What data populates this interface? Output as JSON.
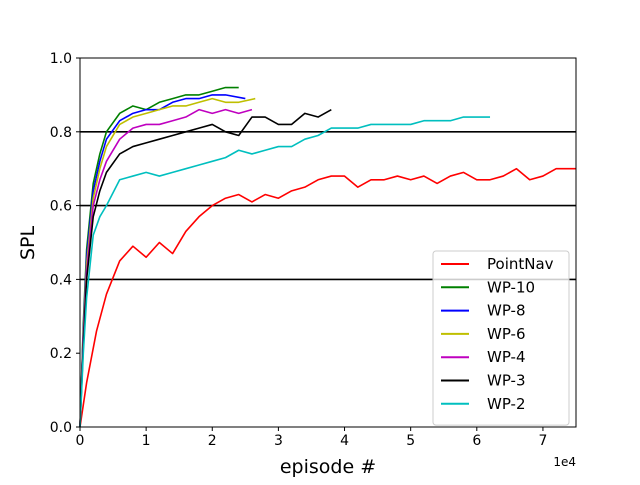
{
  "chart_data": {
    "type": "line",
    "title": "",
    "xlabel": "episode #",
    "ylabel": "SPL",
    "x_offset_label": "1e4",
    "xlim": [
      0,
      7.5
    ],
    "ylim": [
      0.0,
      1.0
    ],
    "x_tick_labels": [
      "0",
      "1",
      "2",
      "3",
      "4",
      "5",
      "6",
      "7"
    ],
    "x_ticks": [
      0,
      1,
      2,
      3,
      4,
      5,
      6,
      7
    ],
    "y_tick_labels": [
      "0.0",
      "0.2",
      "0.4",
      "0.6",
      "0.8",
      "1.0"
    ],
    "y_ticks": [
      0.0,
      0.2,
      0.4,
      0.6,
      0.8,
      1.0
    ],
    "reference_lines": [
      0.4,
      0.6,
      0.8
    ],
    "grid": false,
    "legend_position": "lower-right",
    "series": [
      {
        "name": "PointNav",
        "color": "#ff0000",
        "x": [
          0,
          0.1,
          0.25,
          0.4,
          0.6,
          0.8,
          1.0,
          1.2,
          1.4,
          1.6,
          1.8,
          2.0,
          2.2,
          2.4,
          2.6,
          2.8,
          3.0,
          3.2,
          3.4,
          3.6,
          3.8,
          4.0,
          4.2,
          4.4,
          4.6,
          4.8,
          5.0,
          5.2,
          5.4,
          5.6,
          5.8,
          6.0,
          6.2,
          6.4,
          6.6,
          6.8,
          7.0,
          7.2,
          7.5
        ],
        "y": [
          0.0,
          0.12,
          0.26,
          0.36,
          0.45,
          0.49,
          0.46,
          0.5,
          0.47,
          0.53,
          0.57,
          0.6,
          0.62,
          0.63,
          0.61,
          0.63,
          0.62,
          0.64,
          0.65,
          0.67,
          0.68,
          0.68,
          0.65,
          0.67,
          0.67,
          0.68,
          0.67,
          0.68,
          0.66,
          0.68,
          0.69,
          0.67,
          0.67,
          0.68,
          0.7,
          0.67,
          0.68,
          0.7,
          0.7
        ]
      },
      {
        "name": "WP-10",
        "color": "#008000",
        "x": [
          0,
          0.05,
          0.1,
          0.2,
          0.3,
          0.4,
          0.6,
          0.8,
          1.0,
          1.2,
          1.4,
          1.6,
          1.8,
          2.0,
          2.2,
          2.4
        ],
        "y": [
          0.0,
          0.28,
          0.48,
          0.66,
          0.74,
          0.8,
          0.85,
          0.87,
          0.86,
          0.88,
          0.89,
          0.9,
          0.9,
          0.91,
          0.92,
          0.92
        ]
      },
      {
        "name": "WP-8",
        "color": "#0000ff",
        "x": [
          0,
          0.05,
          0.1,
          0.2,
          0.3,
          0.4,
          0.6,
          0.8,
          1.0,
          1.2,
          1.4,
          1.6,
          1.8,
          2.0,
          2.2,
          2.5
        ],
        "y": [
          0.0,
          0.26,
          0.46,
          0.64,
          0.72,
          0.78,
          0.83,
          0.85,
          0.86,
          0.86,
          0.88,
          0.89,
          0.89,
          0.9,
          0.9,
          0.89
        ]
      },
      {
        "name": "WP-6",
        "color": "#bfbf00",
        "x": [
          0,
          0.05,
          0.1,
          0.2,
          0.3,
          0.4,
          0.6,
          0.8,
          1.0,
          1.2,
          1.4,
          1.6,
          1.8,
          2.0,
          2.2,
          2.4,
          2.65
        ],
        "y": [
          0.0,
          0.25,
          0.44,
          0.62,
          0.7,
          0.76,
          0.82,
          0.84,
          0.85,
          0.86,
          0.87,
          0.87,
          0.88,
          0.89,
          0.88,
          0.88,
          0.89
        ]
      },
      {
        "name": "WP-4",
        "color": "#bf00bf",
        "x": [
          0,
          0.05,
          0.1,
          0.2,
          0.3,
          0.4,
          0.6,
          0.8,
          1.0,
          1.2,
          1.4,
          1.6,
          1.8,
          2.0,
          2.2,
          2.4,
          2.6
        ],
        "y": [
          0.0,
          0.24,
          0.42,
          0.6,
          0.67,
          0.72,
          0.78,
          0.81,
          0.82,
          0.82,
          0.83,
          0.84,
          0.86,
          0.85,
          0.86,
          0.85,
          0.86
        ]
      },
      {
        "name": "WP-3",
        "color": "#000000",
        "x": [
          0,
          0.05,
          0.1,
          0.2,
          0.3,
          0.4,
          0.6,
          0.8,
          1.0,
          1.2,
          1.4,
          1.6,
          1.8,
          2.0,
          2.2,
          2.4,
          2.6,
          2.8,
          3.0,
          3.2,
          3.4,
          3.6,
          3.8
        ],
        "y": [
          0.0,
          0.22,
          0.4,
          0.57,
          0.64,
          0.69,
          0.74,
          0.76,
          0.77,
          0.78,
          0.79,
          0.8,
          0.81,
          0.82,
          0.8,
          0.79,
          0.84,
          0.84,
          0.82,
          0.82,
          0.85,
          0.84,
          0.86
        ]
      },
      {
        "name": "WP-2",
        "color": "#00bfbf",
        "x": [
          0,
          0.05,
          0.1,
          0.2,
          0.3,
          0.4,
          0.6,
          0.8,
          1.0,
          1.2,
          1.4,
          1.6,
          1.8,
          2.0,
          2.2,
          2.4,
          2.6,
          2.8,
          3.0,
          3.2,
          3.4,
          3.6,
          3.8,
          4.0,
          4.2,
          4.4,
          4.6,
          4.8,
          5.0,
          5.2,
          5.4,
          5.6,
          5.8,
          6.0,
          6.2
        ],
        "y": [
          0.0,
          0.2,
          0.35,
          0.52,
          0.57,
          0.6,
          0.67,
          0.68,
          0.69,
          0.68,
          0.69,
          0.7,
          0.71,
          0.72,
          0.73,
          0.75,
          0.74,
          0.75,
          0.76,
          0.76,
          0.78,
          0.79,
          0.81,
          0.81,
          0.81,
          0.82,
          0.82,
          0.82,
          0.82,
          0.83,
          0.83,
          0.83,
          0.84,
          0.84,
          0.84
        ]
      }
    ]
  }
}
